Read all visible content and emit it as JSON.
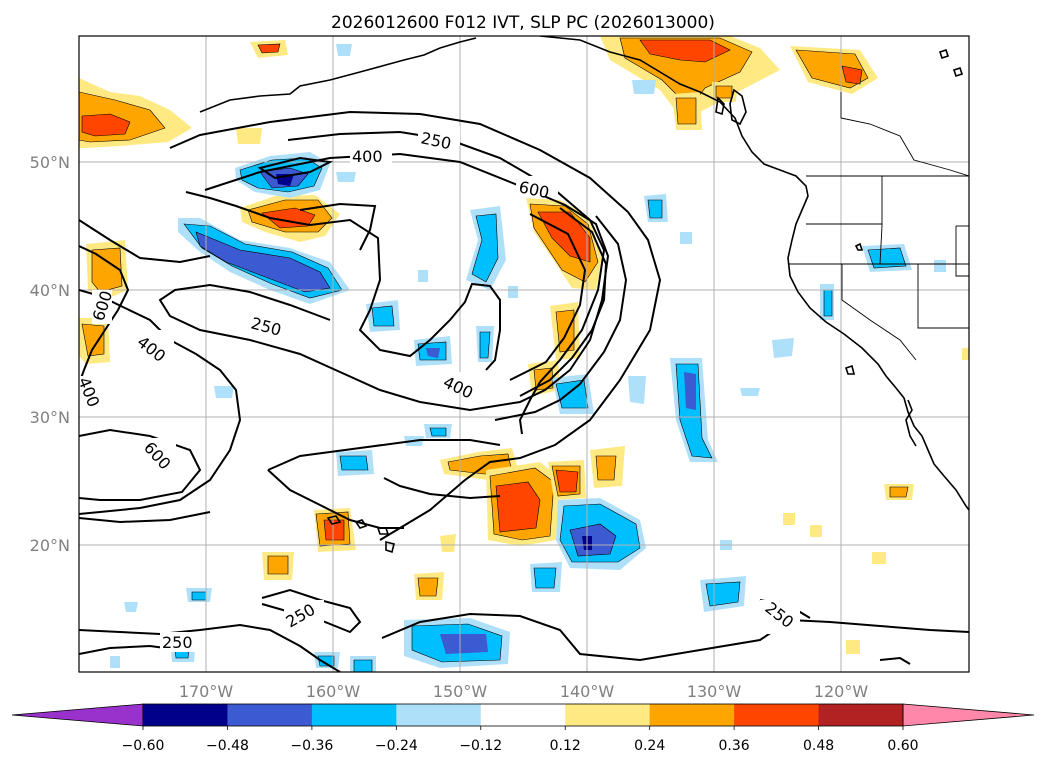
{
  "title": "2026012600 F012 IVT, SLP PC (2026013000)",
  "longitude_labels": [
    "170°W",
    "160°W",
    "150°W",
    "140°W",
    "130°W",
    "120°W"
  ],
  "latitude_labels": [
    "50°N",
    "40°N",
    "30°N",
    "20°N"
  ],
  "colorbar": {
    "tick_labels": [
      "−0.60",
      "−0.48",
      "−0.36",
      "−0.24",
      "−0.12",
      "0.12",
      "0.24",
      "0.36",
      "0.48",
      "0.60"
    ],
    "levels": [
      -0.6,
      -0.48,
      -0.36,
      -0.24,
      -0.12,
      0.12,
      0.24,
      0.36,
      0.48,
      0.6
    ],
    "colors": [
      "#9932cc",
      "#00008b",
      "#3c5ad2",
      "#00bfff",
      "#afe0fa",
      "#ffffff",
      "#ffe983",
      "#ffa500",
      "#ff4500",
      "#b22222",
      "#ff88aa"
    ]
  },
  "contour_labels": {
    "c250_north": "250",
    "c400_north": "400",
    "c600_north": "600",
    "c250_mid": "250",
    "c400_mid": "400",
    "c600_west": "600",
    "c400_west": "400",
    "c400_west2": "400",
    "c600_southwest": "600",
    "c250_south": "250",
    "c250_southwest": "250",
    "c250_southeast": "250"
  }
}
